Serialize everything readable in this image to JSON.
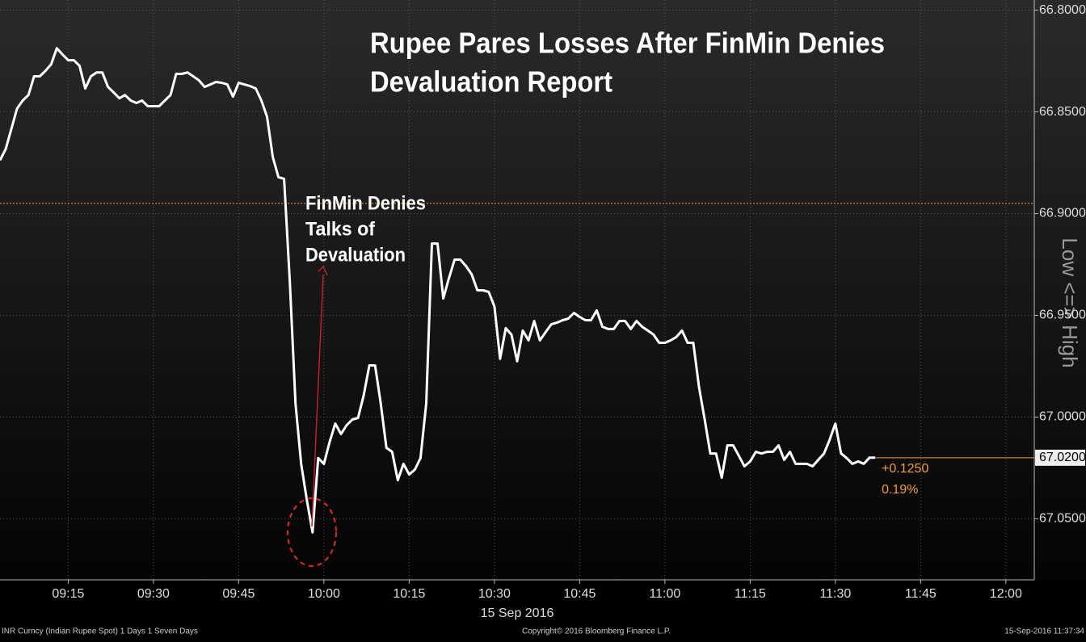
{
  "chart_data": {
    "type": "line",
    "title": [
      "Rupee Pares Losses After FinMin Denies",
      "Devaluation Report"
    ],
    "annotation": [
      "FinMin Denies",
      "Talks of",
      "Devaluation"
    ],
    "x_date_label": "15 Sep 2016",
    "axis_note": "Low <=> High",
    "footer": {
      "left": "INR Curncy (Indian Rupee Spot) 1 Days 1 Seven Days",
      "center": "Copyright© 2016 Bloomberg Finance L.P.",
      "right": "15-Sep-2016 11:37:34"
    },
    "color": "#ffffff",
    "grid": true,
    "xlim": [
      "09:03",
      "12:05"
    ],
    "xticks": [
      "09:15",
      "09:30",
      "09:45",
      "10:00",
      "10:15",
      "10:30",
      "10:45",
      "11:00",
      "11:15",
      "11:30",
      "11:45",
      "12:00"
    ],
    "ylim": [
      67.08,
      66.795
    ],
    "yticks": [
      {
        "value": 66.8,
        "label": "66.8000"
      },
      {
        "value": 66.85,
        "label": "66.8500"
      },
      {
        "value": 66.9,
        "label": "66.9000"
      },
      {
        "value": 66.95,
        "label": "66.9500"
      },
      {
        "value": 67.0,
        "label": "67.0000"
      },
      {
        "value": 67.05,
        "label": "67.0500"
      }
    ],
    "reference_line": {
      "value": 66.895,
      "color": "#f39c33"
    },
    "last_value": {
      "value": 67.02,
      "label": "67.0200",
      "color": "#f39c33"
    },
    "change_labels": [
      "+0.1250",
      "0.19%"
    ],
    "x": [
      "09:03",
      "09:04",
      "09:05",
      "09:06",
      "09:07",
      "09:08",
      "09:09",
      "09:10",
      "09:11",
      "09:12",
      "09:13",
      "09:14",
      "09:15",
      "09:16",
      "09:17",
      "09:18",
      "09:19",
      "09:20",
      "09:21",
      "09:22",
      "09:23",
      "09:24",
      "09:25",
      "09:26",
      "09:27",
      "09:28",
      "09:29",
      "09:30",
      "09:31",
      "09:32",
      "09:33",
      "09:34",
      "09:35",
      "09:36",
      "09:37",
      "09:38",
      "09:39",
      "09:40",
      "09:41",
      "09:42",
      "09:43",
      "09:44",
      "09:45",
      "09:46",
      "09:47",
      "09:48",
      "09:49",
      "09:50",
      "09:51",
      "09:52",
      "09:53",
      "09:54",
      "09:55",
      "09:56",
      "09:57",
      "09:58",
      "09:59",
      "10:00",
      "10:01",
      "10:02",
      "10:03",
      "10:04",
      "10:05",
      "10:06",
      "10:07",
      "10:08",
      "10:09",
      "10:10",
      "10:11",
      "10:12",
      "10:13",
      "10:14",
      "10:15",
      "10:16",
      "10:17",
      "10:18",
      "10:19",
      "10:20",
      "10:21",
      "10:22",
      "10:23",
      "10:24",
      "10:25",
      "10:26",
      "10:27",
      "10:28",
      "10:29",
      "10:30",
      "10:31",
      "10:32",
      "10:33",
      "10:34",
      "10:35",
      "10:36",
      "10:37",
      "10:38",
      "10:39",
      "10:40",
      "10:41",
      "10:42",
      "10:43",
      "10:44",
      "10:45",
      "10:46",
      "10:47",
      "10:48",
      "10:49",
      "10:50",
      "10:51",
      "10:52",
      "10:53",
      "10:54",
      "10:55",
      "10:56",
      "10:57",
      "10:58",
      "10:59",
      "11:00",
      "11:01",
      "11:02",
      "11:03",
      "11:04",
      "11:05",
      "11:06",
      "11:07",
      "11:08",
      "11:09",
      "11:10",
      "11:11",
      "11:12",
      "11:13",
      "11:14",
      "11:15",
      "11:16",
      "11:17",
      "11:18",
      "11:19",
      "11:20",
      "11:21",
      "11:22",
      "11:23",
      "11:24",
      "11:25",
      "11:26",
      "11:27",
      "11:28",
      "11:29",
      "11:30",
      "11:31",
      "11:32",
      "11:33",
      "11:34",
      "11:35",
      "11:36",
      "11:37"
    ],
    "values": [
      66.8738,
      66.8683,
      66.8583,
      66.8484,
      66.8444,
      66.8417,
      66.8325,
      66.8325,
      66.8298,
      66.8266,
      66.8187,
      66.8218,
      66.8246,
      66.8246,
      66.8274,
      66.8385,
      66.8325,
      66.8306,
      66.8306,
      66.8377,
      66.8405,
      66.8433,
      66.8417,
      66.8444,
      66.8456,
      66.8444,
      66.8472,
      66.8472,
      66.8472,
      66.8444,
      66.8417,
      66.8313,
      66.8313,
      66.8306,
      66.8325,
      66.8345,
      66.8377,
      66.8365,
      66.8353,
      66.8357,
      66.8365,
      66.8425,
      66.8357,
      66.8365,
      66.8373,
      66.8385,
      66.8444,
      66.8524,
      66.8722,
      66.8821,
      66.8829,
      66.9337,
      66.9933,
      67.023,
      67.0409,
      67.0567,
      67.0202,
      67.023,
      67.0123,
      67.0032,
      67.0083,
      67.004,
      67.0012,
      67.0004,
      66.9893,
      66.9746,
      66.9746,
      66.9933,
      67.0151,
      67.0171,
      67.031,
      67.023,
      67.0282,
      67.0258,
      67.0202,
      66.9933,
      66.9147,
      66.9147,
      66.9417,
      66.9317,
      66.9226,
      66.9226,
      66.9258,
      66.9298,
      66.9377,
      66.9377,
      66.9385,
      66.9456,
      66.9714,
      66.9563,
      66.9595,
      66.9726,
      66.9575,
      66.9623,
      66.9528,
      66.9623,
      66.9583,
      66.9544,
      66.9536,
      66.9524,
      66.9516,
      66.9488,
      66.9508,
      66.9524,
      66.9524,
      66.9476,
      66.9556,
      66.9567,
      66.9567,
      66.9528,
      66.9528,
      66.9567,
      66.9528,
      66.9556,
      66.9575,
      66.9595,
      66.9635,
      66.9635,
      66.9623,
      66.9607,
      66.9575,
      66.9635,
      66.9635,
      66.9853,
      67.0012,
      67.0179,
      67.0179,
      67.0298,
      67.0139,
      67.0139,
      67.019,
      67.0242,
      67.0218,
      67.0171,
      67.0179,
      67.0171,
      67.0171,
      67.0139,
      67.021,
      67.0171,
      67.023,
      67.023,
      67.023,
      67.0242,
      67.021,
      67.0179,
      67.0111,
      67.0032,
      67.0179,
      67.0202,
      67.023,
      67.0218,
      67.023,
      67.02,
      67.02
    ]
  }
}
